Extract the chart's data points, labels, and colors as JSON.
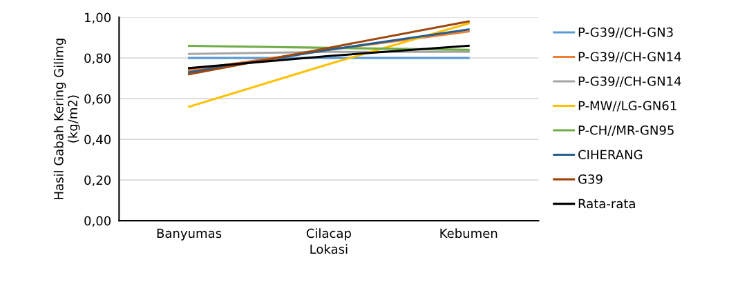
{
  "chart_data": {
    "type": "line",
    "xlabel": "Lokasi",
    "ylabel": "Hasil Gabah Kering Gilimg\n(kg/m2)",
    "categories": [
      "Banyumas",
      "Cilacap",
      "Kebumen"
    ],
    "series": [
      {
        "name": "P-G39//CH-GN3",
        "color": "#5b9bd5",
        "values": [
          0.8,
          0.8,
          0.8
        ]
      },
      {
        "name": "P-G39//CH-GN14",
        "color": "#ed7d31",
        "values": [
          0.74,
          0.84,
          0.93
        ]
      },
      {
        "name": "P-G39//CH-GN14",
        "color": "#a5a5a5",
        "values": [
          0.82,
          0.83,
          0.83
        ]
      },
      {
        "name": "P-MW//LG-GN61",
        "color": "#ffc000",
        "values": [
          0.56,
          0.77,
          0.97
        ]
      },
      {
        "name": "P-CH//MR-GN95",
        "color": "#70ad47",
        "values": [
          0.86,
          0.85,
          0.84
        ]
      },
      {
        "name": "CIHERANG",
        "color": "#255e91",
        "values": [
          0.73,
          0.84,
          0.94
        ]
      },
      {
        "name": "G39",
        "color": "#9e480e",
        "values": [
          0.72,
          0.85,
          0.98
        ]
      },
      {
        "name": "Rata-rata",
        "color": "#000000",
        "values": [
          0.75,
          0.81,
          0.86
        ]
      }
    ],
    "ylim": [
      0,
      1.0
    ],
    "yticks": [
      {
        "value": 0,
        "label": "0,00"
      },
      {
        "value": 0.2,
        "label": "0,20"
      },
      {
        "value": 0.4,
        "label": "0,40"
      },
      {
        "value": 0.6,
        "label": "0,60"
      },
      {
        "value": 0.8,
        "label": "0,80"
      },
      {
        "value": 1.0,
        "label": "1,00"
      }
    ],
    "grid": "y",
    "legend": "right",
    "marker": "none",
    "line_style": "solid"
  }
}
